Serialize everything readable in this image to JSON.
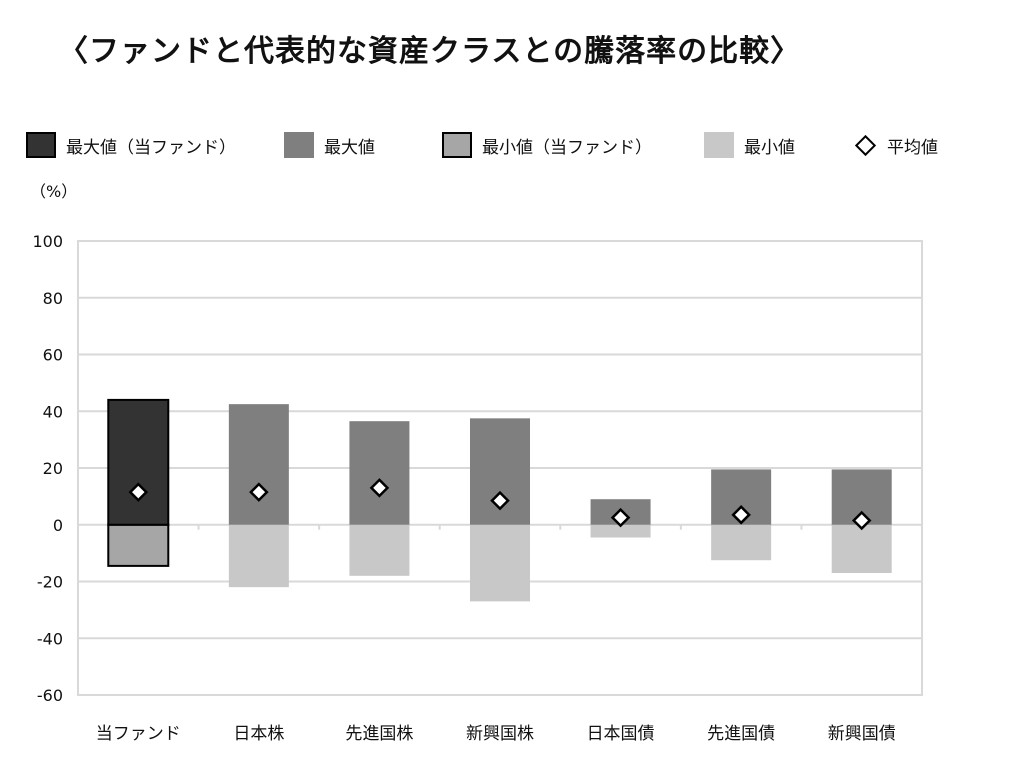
{
  "title": "〈ファンドと代表的な資産クラスとの騰落率の比較〉",
  "unit": "（%）",
  "legend": [
    {
      "label": "最大値（当ファンド）",
      "color": "#333333",
      "outlined": true,
      "marker": "box"
    },
    {
      "label": "最大値",
      "color": "#7f7f7f",
      "outlined": false,
      "marker": "box"
    },
    {
      "label": "最小値（当ファンド）",
      "color": "#a6a6a6",
      "outlined": true,
      "marker": "box"
    },
    {
      "label": "最小値",
      "color": "#c8c8c8",
      "outlined": false,
      "marker": "box"
    },
    {
      "label": "平均値",
      "marker": "diamond"
    }
  ],
  "chart_data": {
    "type": "bar",
    "categories": [
      "当ファンド",
      "日本株",
      "先進国株",
      "新興国株",
      "日本国債",
      "先進国債",
      "新興国債"
    ],
    "series": [
      {
        "name": "最大値",
        "values": [
          44,
          42.5,
          36.5,
          37.5,
          9,
          19.5,
          19.5
        ]
      },
      {
        "name": "最小値",
        "values": [
          -14.5,
          -22,
          -18,
          -27,
          -4.5,
          -12.5,
          -17
        ]
      },
      {
        "name": "平均値",
        "values": [
          11.5,
          11.5,
          13,
          8.5,
          2.5,
          3.5,
          1.5
        ]
      }
    ],
    "colors": {
      "fund_max": "#333333",
      "fund_min": "#a6a6a6",
      "max": "#7f7f7f",
      "min": "#c8c8c8",
      "grid": "#d9d9d9"
    },
    "ylabel": "（%）",
    "ylim": [
      -60,
      100
    ],
    "yticks": [
      100,
      80,
      60,
      40,
      20,
      0,
      -20,
      -40,
      -60
    ],
    "grid": true,
    "legend_position": "top"
  }
}
